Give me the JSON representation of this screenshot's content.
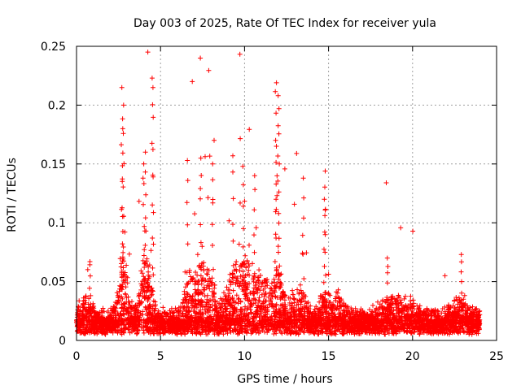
{
  "chart_data": {
    "type": "scatter",
    "title": "Day 003 of 2025, Rate Of TEC Index for receiver yula",
    "xlabel": "GPS time / hours",
    "ylabel": "ROTI / TECUs",
    "xlim": [
      0,
      25
    ],
    "ylim": [
      0,
      0.25
    ],
    "xticks": [
      0,
      5,
      10,
      15,
      20,
      25
    ],
    "xtick_labels": [
      "0",
      "5",
      "10",
      "15",
      "20",
      "25"
    ],
    "yticks": [
      0,
      0.05,
      0.1,
      0.15,
      0.2,
      0.25
    ],
    "ytick_labels": [
      "0",
      "0.05",
      "0.1",
      "0.15",
      "0.2",
      "0.25"
    ],
    "grid": true,
    "marker": "plus",
    "color": "#ff0000",
    "x_range_of_data": [
      0,
      24
    ],
    "peaks": [
      {
        "x": 2.7,
        "y": 0.215
      },
      {
        "x": 2.8,
        "y": 0.2
      },
      {
        "x": 2.75,
        "y": 0.18
      },
      {
        "x": 4.5,
        "y": 0.223
      },
      {
        "x": 4.55,
        "y": 0.215
      },
      {
        "x": 4.1,
        "y": 0.16
      },
      {
        "x": 4.0,
        "y": 0.15
      },
      {
        "x": 6.6,
        "y": 0.153
      },
      {
        "x": 7.4,
        "y": 0.155
      },
      {
        "x": 8.1,
        "y": 0.15
      },
      {
        "x": 9.3,
        "y": 0.157
      },
      {
        "x": 9.9,
        "y": 0.148
      },
      {
        "x": 10.6,
        "y": 0.14
      },
      {
        "x": 11.9,
        "y": 0.219
      },
      {
        "x": 12.0,
        "y": 0.208
      },
      {
        "x": 12.05,
        "y": 0.197
      },
      {
        "x": 11.85,
        "y": 0.17
      },
      {
        "x": 13.5,
        "y": 0.138
      },
      {
        "x": 14.8,
        "y": 0.144
      },
      {
        "x": 14.75,
        "y": 0.12
      },
      {
        "x": 0.8,
        "y": 0.067
      },
      {
        "x": 18.5,
        "y": 0.07
      },
      {
        "x": 22.9,
        "y": 0.073
      }
    ]
  }
}
